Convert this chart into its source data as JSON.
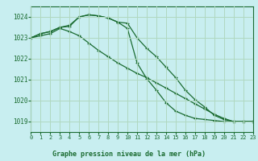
{
  "title": "Graphe pression niveau de la mer (hPa)",
  "background_color": "#c8eef0",
  "grid_color": "#b0d8c0",
  "line_color": "#1a6b30",
  "marker_color": "#1a6b30",
  "xlim": [
    0,
    23
  ],
  "ylim": [
    1018.5,
    1024.5
  ],
  "yticks": [
    1019,
    1020,
    1021,
    1022,
    1023,
    1024
  ],
  "xticks": [
    0,
    1,
    2,
    3,
    4,
    5,
    6,
    7,
    8,
    9,
    10,
    11,
    12,
    13,
    14,
    15,
    16,
    17,
    18,
    19,
    20,
    21,
    22,
    23
  ],
  "curve1_x": [
    0,
    1,
    2,
    3,
    4,
    5,
    6,
    7,
    8,
    9,
    10,
    11,
    12,
    13,
    14,
    15,
    16,
    17,
    18,
    19,
    20,
    21,
    22,
    23
  ],
  "curve1_y": [
    1023.0,
    1023.2,
    1023.3,
    1023.5,
    1023.6,
    1024.0,
    1024.1,
    1024.05,
    1023.95,
    1023.75,
    1023.7,
    1023.0,
    1022.5,
    1022.1,
    1021.6,
    1021.1,
    1020.5,
    1020.05,
    1019.7,
    1019.3,
    1019.1,
    1019.0,
    1019.0,
    1019.0
  ],
  "curve2_x": [
    0,
    1,
    2,
    3,
    4,
    5,
    6,
    7,
    8,
    9,
    10,
    11,
    12,
    13,
    14,
    15,
    16,
    17,
    18,
    19,
    20,
    21,
    22,
    23
  ],
  "curve2_y": [
    1023.0,
    1023.2,
    1023.3,
    1023.5,
    1023.55,
    1024.0,
    1024.1,
    1024.05,
    1023.95,
    1023.75,
    1023.45,
    1021.8,
    1021.05,
    1020.5,
    1019.9,
    1019.5,
    1019.3,
    1019.15,
    1019.1,
    1019.05,
    1019.0,
    1019.0,
    1019.0,
    1019.0
  ],
  "curve3_x": [
    0,
    1,
    2,
    3,
    4,
    5,
    6,
    7,
    8,
    9,
    10,
    11,
    12,
    13,
    14,
    15,
    16,
    17,
    18,
    19,
    20,
    21,
    22,
    23
  ],
  "curve3_y": [
    1023.0,
    1023.1,
    1023.2,
    1023.45,
    1023.3,
    1023.1,
    1022.75,
    1022.4,
    1022.1,
    1021.8,
    1021.55,
    1021.3,
    1021.1,
    1020.85,
    1020.6,
    1020.35,
    1020.1,
    1019.85,
    1019.6,
    1019.35,
    1019.15,
    1019.0,
    1019.0,
    1019.0
  ]
}
